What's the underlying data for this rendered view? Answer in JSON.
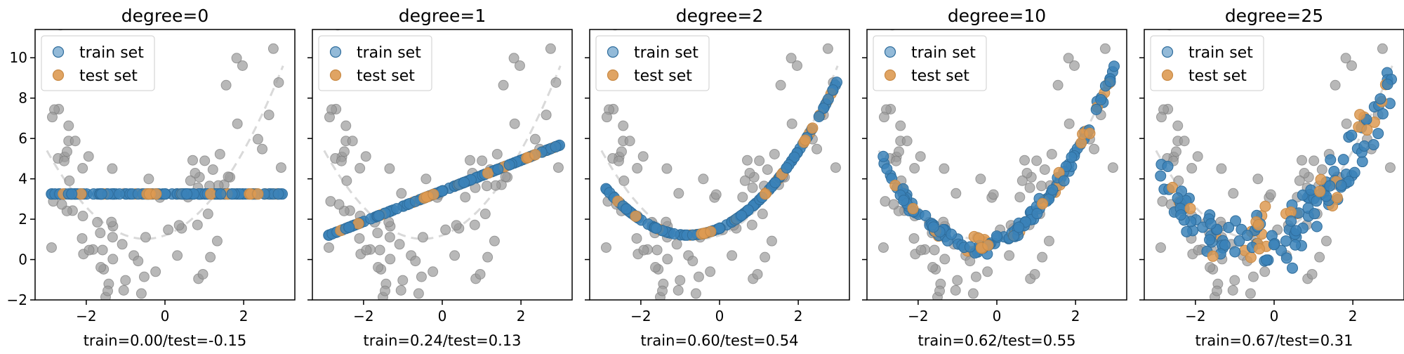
{
  "colors": {
    "train": "#3b82b8",
    "test": "#dd9a52",
    "population": "#9a9a9a",
    "true_curve": "#d9d9d9"
  },
  "legend": {
    "train_label": "train set",
    "test_label": "test set"
  },
  "chart_data": [
    {
      "type": "scatter",
      "title": "degree=0",
      "xlabel": "train=0.00/test=-0.15",
      "xlim": [
        -3.3,
        3.3
      ],
      "ylim": [
        -2,
        11.4
      ],
      "xticks": [
        -2,
        0,
        2
      ],
      "yticks": [
        -2,
        0,
        2,
        4,
        6,
        8,
        10
      ],
      "show_ytick_labels": true,
      "fit": {
        "kind": "poly",
        "coef": [
          3.25
        ],
        "jitter": 0
      }
    },
    {
      "type": "scatter",
      "title": "degree=1",
      "xlabel": "train=0.24/test=0.13",
      "xlim": [
        -3.3,
        3.3
      ],
      "ylim": [
        -2,
        11.4
      ],
      "xticks": [
        -2,
        0,
        2
      ],
      "yticks": [
        -2,
        0,
        2,
        4,
        6,
        8,
        10
      ],
      "show_ytick_labels": false,
      "fit": {
        "kind": "poly",
        "coef": [
          3.4,
          0.76
        ],
        "jitter": 0
      }
    },
    {
      "type": "scatter",
      "title": "degree=2",
      "xlabel": "train=0.60/test=0.54",
      "xlim": [
        -3.3,
        3.3
      ],
      "ylim": [
        -2,
        11.4
      ],
      "xticks": [
        -2,
        0,
        2
      ],
      "yticks": [
        -2,
        0,
        2,
        4,
        6,
        8,
        10
      ],
      "show_ytick_labels": false,
      "fit": {
        "kind": "poly",
        "coef": [
          1.55,
          0.85,
          0.53
        ],
        "jitter": 0
      }
    },
    {
      "type": "scatter",
      "title": "degree=10",
      "xlabel": "train=0.62/test=0.55",
      "xlim": [
        -3.3,
        3.3
      ],
      "ylim": [
        -2,
        11.4
      ],
      "xticks": [
        -2,
        0,
        2
      ],
      "yticks": [
        -2,
        0,
        2,
        4,
        6,
        8,
        10
      ],
      "show_ytick_labels": false,
      "fit": {
        "kind": "poly",
        "coef": [
          0.9,
          0.75,
          0.72
        ],
        "jitter": 0.18
      }
    },
    {
      "type": "scatter",
      "title": "degree=25",
      "xlabel": "train=0.67/test=0.31",
      "xlim": [
        -3.3,
        3.3
      ],
      "ylim": [
        -2,
        11.4
      ],
      "xticks": [
        -2,
        0,
        2
      ],
      "yticks": [
        -2,
        0,
        2,
        4,
        6,
        8,
        10
      ],
      "show_ytick_labels": false,
      "fit": {
        "kind": "poly",
        "coef": [
          1.1,
          0.7,
          0.62
        ],
        "jitter": 0.75
      }
    }
  ]
}
